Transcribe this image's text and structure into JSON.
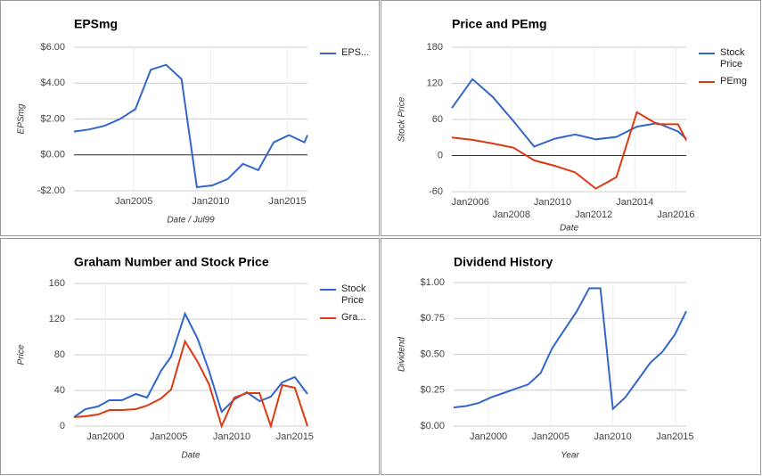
{
  "chart_data": [
    {
      "type": "line",
      "title": "EPSmg",
      "x_label": "Date / Jul99",
      "y_label": "EPSmg",
      "x": [
        2001.1,
        2002.1,
        2003.1,
        2004.1,
        2005.1,
        2006.1,
        2007.1,
        2008.1,
        2009.1,
        2010.1,
        2011.1,
        2012.1,
        2013.1,
        2014.1,
        2015.1,
        2016.1,
        2016.3
      ],
      "series": [
        {
          "name": "EPS...",
          "color": "#3366cc",
          "values": [
            1.3,
            1.42,
            1.62,
            2.0,
            2.55,
            4.75,
            5.02,
            4.22,
            -1.8,
            -1.7,
            -1.35,
            -0.5,
            -0.85,
            0.7,
            1.1,
            0.7,
            1.1
          ]
        }
      ],
      "xlim": [
        2001.1,
        2016.3
      ],
      "xticks": [
        {
          "value": 2005,
          "label": "Jan2005"
        },
        {
          "value": 2010,
          "label": "Jan2010"
        },
        {
          "value": 2015,
          "label": "Jan2015"
        }
      ],
      "ylim": [
        -2,
        6
      ],
      "yticks": [
        {
          "value": 6,
          "label": "$6.00"
        },
        {
          "value": 4,
          "label": "$4.00"
        },
        {
          "value": 2,
          "label": "$2.00"
        },
        {
          "value": 0,
          "label": "$0.00"
        },
        {
          "value": -2,
          "label": "-$2.00"
        }
      ],
      "grid": true,
      "zero_line": true,
      "legend": "right"
    },
    {
      "type": "line",
      "title": "Price and PEmg",
      "x_label": "Date",
      "y_label": "Stock Price",
      "x": [
        2005.1,
        2006.1,
        2007.1,
        2008.1,
        2009.1,
        2010.1,
        2011.1,
        2012.1,
        2013.1,
        2014.1,
        2015.1,
        2016.1,
        2016.5
      ],
      "series": [
        {
          "name": "Stock Price",
          "color": "#3366cc",
          "values": [
            79,
            127,
            97,
            57,
            15,
            28,
            35,
            27,
            31,
            48,
            54,
            40,
            28
          ]
        },
        {
          "name": "PEmg",
          "color": "#dc3912",
          "values": [
            30,
            26,
            20,
            13,
            -8,
            -17,
            -28,
            -55,
            -36,
            72,
            52,
            52,
            25
          ]
        }
      ],
      "xlim": [
        2005.1,
        2016.5
      ],
      "xticks": [
        {
          "value": 2006,
          "label": "Jan2006"
        },
        {
          "value": 2008,
          "label": "Jan2008"
        },
        {
          "value": 2010,
          "label": "Jan2010"
        },
        {
          "value": 2012,
          "label": "Jan2012"
        },
        {
          "value": 2014,
          "label": "Jan2014"
        },
        {
          "value": 2016,
          "label": "Jan2016"
        }
      ],
      "ylim": [
        -60,
        180
      ],
      "yticks": [
        180,
        120,
        60,
        0,
        -60
      ],
      "grid": true,
      "zero_line": true,
      "stagger_xticks": true,
      "legend": "right"
    },
    {
      "type": "line",
      "title": "Graham Number and Stock Price",
      "x_label": "Date",
      "y_label": "Price",
      "x": [
        1997.5,
        1998.4,
        1999.4,
        2000.3,
        2001.3,
        2002.4,
        2003.3,
        2004.4,
        2005.2,
        2006.3,
        2007.3,
        2008.2,
        2009.2,
        2010.2,
        2011.2,
        2012.2,
        2013.1,
        2014.0,
        2015.0,
        2016.0
      ],
      "series": [
        {
          "name": "Stock Price",
          "color": "#3366cc",
          "values": [
            10,
            19,
            22,
            29,
            29,
            36,
            32,
            62,
            78,
            126,
            98,
            62,
            16,
            30,
            38,
            28,
            33,
            49,
            55,
            36
          ]
        },
        {
          "name": "Gra...",
          "color": "#dc3912",
          "values": [
            10,
            11,
            13,
            18,
            18,
            19,
            23,
            31,
            41,
            95,
            72,
            47,
            0,
            32,
            37,
            37,
            0,
            46,
            43,
            0
          ]
        }
      ],
      "xlim": [
        1997.5,
        2016.0
      ],
      "xticks": [
        {
          "value": 2000,
          "label": "Jan2000"
        },
        {
          "value": 2005,
          "label": "Jan2005"
        },
        {
          "value": 2010,
          "label": "Jan2010"
        },
        {
          "value": 2015,
          "label": "Jan2015"
        }
      ],
      "ylim": [
        0,
        160
      ],
      "yticks": [
        160,
        120,
        80,
        40,
        0
      ],
      "grid": true,
      "legend": "right"
    },
    {
      "type": "line",
      "title": "Dividend History",
      "x_label": "Year",
      "y_label": "Dividend",
      "x": [
        1997.2,
        1998.2,
        1999.2,
        2000.2,
        2001.2,
        2002.2,
        2003.2,
        2004.2,
        2005.1,
        2006.1,
        2007.1,
        2008.1,
        2009.0,
        2010.0,
        2011.0,
        2012.0,
        2013.0,
        2014.0,
        2015.0,
        2015.9
      ],
      "color": "#3366cc",
      "values": [
        0.13,
        0.14,
        0.16,
        0.2,
        0.23,
        0.26,
        0.29,
        0.37,
        0.54,
        0.67,
        0.8,
        0.96,
        0.96,
        0.12,
        0.2,
        0.32,
        0.44,
        0.52,
        0.64,
        0.8
      ],
      "xlim": [
        1997.2,
        2015.9
      ],
      "xticks": [
        {
          "value": 2000,
          "label": "Jan2000"
        },
        {
          "value": 2005,
          "label": "Jan2005"
        },
        {
          "value": 2010,
          "label": "Jan2010"
        },
        {
          "value": 2015,
          "label": "Jan2015"
        }
      ],
      "ylim": [
        0,
        1
      ],
      "yticks": [
        {
          "value": 1,
          "label": "$1.00"
        },
        {
          "value": 0.75,
          "label": "$0.75"
        },
        {
          "value": 0.5,
          "label": "$0.50"
        },
        {
          "value": 0.25,
          "label": "$0.25"
        },
        {
          "value": 0,
          "label": "$0.00"
        }
      ],
      "grid": true
    }
  ]
}
